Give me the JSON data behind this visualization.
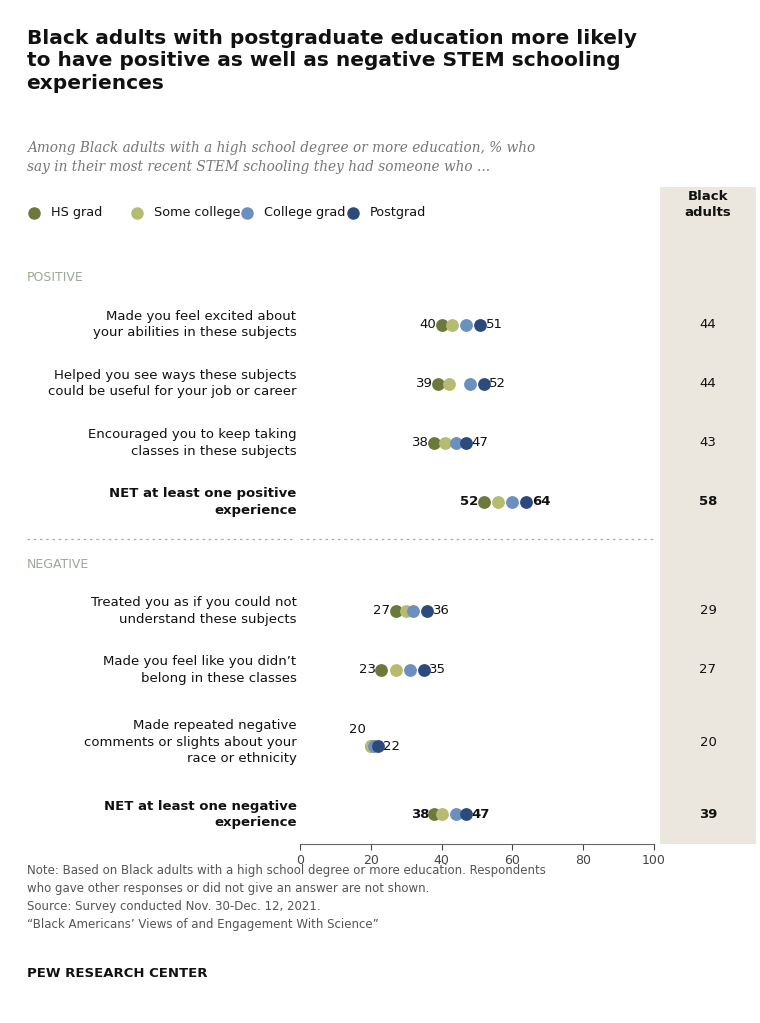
{
  "title": "Black adults with postgraduate education more likely\nto have positive as well as negative STEM schooling\nexperiences",
  "subtitle": "Among Black adults with a high school degree or more education, % who\nsay in their most recent STEM schooling they had someone who ...",
  "legend_labels": [
    "HS grad",
    "Some college",
    "College grad",
    "Postgrad"
  ],
  "legend_colors": [
    "#6b7a3a",
    "#b5bc72",
    "#6b8fbf",
    "#2c4a7c"
  ],
  "right_col_header": "Black\nadults",
  "right_col_bg": "#ebe7df",
  "rows": [
    {
      "section": "POSITIVE",
      "label": "Made you feel excited about\nyour abilities in these subjects",
      "min_val": 40,
      "max_val": 51,
      "dots": [
        40,
        43,
        47,
        51
      ],
      "right_val": "44",
      "bold": false
    },
    {
      "section": null,
      "label": "Helped you see ways these subjects\ncould be useful for your job or career",
      "min_val": 39,
      "max_val": 52,
      "dots": [
        39,
        42,
        48,
        52
      ],
      "right_val": "44",
      "bold": false
    },
    {
      "section": null,
      "label": "Encouraged you to keep taking\nclasses in these subjects",
      "min_val": 38,
      "max_val": 47,
      "dots": [
        38,
        41,
        44,
        47
      ],
      "right_val": "43",
      "bold": false
    },
    {
      "section": null,
      "label": "NET at least one positive\nexperience",
      "min_val": 52,
      "max_val": 64,
      "dots": [
        52,
        56,
        60,
        64
      ],
      "right_val": "58",
      "bold": true,
      "divider_below": true
    },
    {
      "section": "NEGATIVE",
      "label": "Treated you as if you could not\nunderstand these subjects",
      "min_val": 27,
      "max_val": 36,
      "dots": [
        27,
        30,
        32,
        36
      ],
      "right_val": "29",
      "bold": false
    },
    {
      "section": null,
      "label": "Made you feel like you didn’t\nbelong in these classes",
      "min_val": 23,
      "max_val": 35,
      "dots": [
        23,
        27,
        31,
        35
      ],
      "right_val": "27",
      "bold": false
    },
    {
      "section": null,
      "label": "Made repeated negative\ncomments or slights about your\nrace or ethnicity",
      "min_val": 20,
      "max_val": 22,
      "dots": [
        20,
        20,
        21,
        22
      ],
      "right_val": "20",
      "bold": false,
      "min_label_row2": true
    },
    {
      "section": null,
      "label": "NET at least one negative\nexperience",
      "min_val": 38,
      "max_val": 47,
      "dots": [
        38,
        40,
        44,
        47
      ],
      "right_val": "39",
      "bold": true
    }
  ],
  "xmin": 0,
  "xmax": 100,
  "xticks": [
    0,
    20,
    40,
    60,
    80,
    100
  ],
  "note1": "Note: Based on Black adults with a high school degree or more education. Respondents",
  "note2": "who gave other responses or did not give an answer are not shown.",
  "note3": "Source: Survey conducted Nov. 30-Dec. 12, 2021.",
  "note4": "“Black Americans’ Views of and Engagement With Science”",
  "footer": "PEW RESEARCH CENTER",
  "bg_color": "#ffffff",
  "section_color": "#9aaa96",
  "dot_size": 85,
  "top_border_color": "#bbbbbb"
}
